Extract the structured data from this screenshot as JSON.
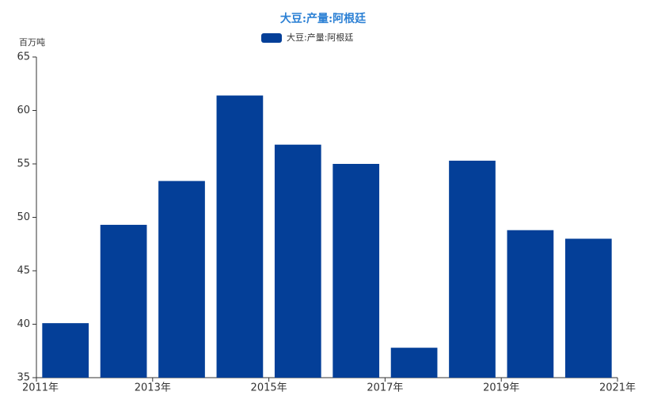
{
  "chart_data": {
    "type": "bar",
    "title": "大豆:产量:阿根廷",
    "y_unit": "百万吨",
    "categories": [
      null,
      null,
      null,
      null,
      null,
      null,
      null,
      null,
      null,
      null
    ],
    "x_labels": [
      "2011年",
      "2013年",
      "2015年",
      "2017年",
      "2019年",
      "2021年"
    ],
    "series": [
      {
        "name": "大豆:产量:阿根廷",
        "color": "#043f98",
        "values": [
          40.1,
          49.3,
          53.4,
          61.4,
          56.8,
          55.0,
          37.8,
          55.3,
          48.8,
          48.0
        ]
      }
    ],
    "ylim": [
      35,
      65
    ],
    "yticks": [
      35,
      40,
      45,
      50,
      55,
      60,
      65
    ]
  }
}
